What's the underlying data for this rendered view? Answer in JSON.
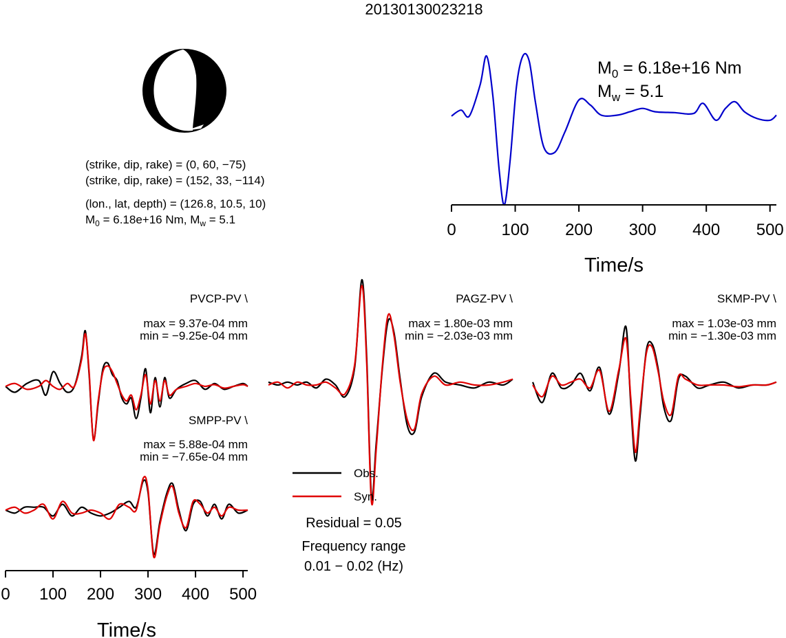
{
  "figure": {
    "title": "20130130023218",
    "focal": {
      "line1": "(strike, dip, rake) = (0, 60, −75)",
      "line2": "(strike, dip, rake) = (152, 33, −114)",
      "line3": "(lon., lat, depth) = (126.8, 10.5, 10)",
      "line4_prefix": "M",
      "line4_sub1": "0",
      "line4_mid": " = 6.18e+16 Nm, M",
      "line4_sub2": "w",
      "line4_suffix": " = 5.1"
    },
    "stf": {
      "m0_prefix": "M",
      "m0_sub": "0",
      "m0_value": " = 6.18e+16 Nm",
      "mw_prefix": "M",
      "mw_sub": "w",
      "mw_value": " = 5.1",
      "xlabel": "Time/s"
    },
    "legend": {
      "obs": "Obs.",
      "syn": "Syn.",
      "residual": "Residual = 0.05",
      "freq_label": "Frequency range",
      "freq_value": "0.01 − 0.02 (Hz)"
    },
    "wave_xlabel": "Time/s"
  },
  "colors": {
    "obs": "#000000",
    "syn": "#e00000",
    "stf": "#0000cc",
    "beachball": "#000000"
  },
  "chart_data": [
    {
      "type": "line",
      "role": "source-time-function",
      "xlabel": "Time/s",
      "xlim": [
        0,
        510
      ],
      "xticks": [
        0,
        100,
        200,
        300,
        400,
        500
      ],
      "annotations": [
        "M0 = 6.18e+16 Nm",
        "Mw = 5.1"
      ],
      "series": [
        {
          "x": [
            0,
            15,
            28,
            45,
            55,
            65,
            75,
            83,
            92,
            102,
            112,
            122,
            132,
            145,
            162,
            178,
            200,
            218,
            235,
            260,
            280,
            300,
            320,
            350,
            380,
            395,
            415,
            430,
            445,
            460,
            480,
            500,
            510
          ],
          "values": [
            0.05,
            0.4,
            0.05,
            1.9,
            3.6,
            1.2,
            -3.2,
            -5.2,
            -2.6,
            1.8,
            3.6,
            3.3,
            0.8,
            -1.8,
            -2.1,
            -0.9,
            1.0,
            0.7,
            0.1,
            0.1,
            0.3,
            0.5,
            0.3,
            0.25,
            0.2,
            0.8,
            -0.2,
            0.5,
            0.9,
            0.3,
            -0.1,
            -0.2,
            0.1
          ]
        }
      ]
    },
    {
      "type": "line",
      "station": "PVCP-PV \\",
      "max_label": "max = 9.37e-04 mm",
      "min_label": "min = −9.25e-04 mm",
      "xlim": [
        0,
        510
      ],
      "series": [
        {
          "name": "Obs.",
          "x": [
            0,
            20,
            45,
            70,
            85,
            100,
            115,
            130,
            145,
            160,
            168,
            176,
            185,
            195,
            205,
            215,
            225,
            235,
            245,
            255,
            265,
            275,
            285,
            295,
            305,
            315,
            325,
            335,
            345,
            360,
            380,
            400,
            420,
            440,
            460,
            480,
            500,
            510
          ],
          "values": [
            0,
            -0.1,
            0.05,
            0.1,
            -0.15,
            0.25,
            0.05,
            -0.1,
            0.0,
            0.5,
            0.95,
            0.2,
            -0.9,
            -0.3,
            0.3,
            0.4,
            0.2,
            0.1,
            -0.2,
            -0.3,
            -0.2,
            -0.55,
            -0.2,
            0.3,
            -0.45,
            0.15,
            -0.35,
            0.15,
            -0.2,
            -0.05,
            0.05,
            0.1,
            -0.05,
            0.05,
            -0.05,
            0.0,
            0.05,
            0.0
          ]
        },
        {
          "name": "Syn.",
          "x": [
            0,
            20,
            45,
            70,
            85,
            100,
            115,
            130,
            145,
            160,
            168,
            176,
            185,
            195,
            205,
            215,
            225,
            235,
            245,
            255,
            265,
            275,
            285,
            295,
            305,
            315,
            325,
            335,
            345,
            360,
            380,
            400,
            420,
            440,
            460,
            480,
            500,
            510
          ],
          "values": [
            0,
            0.05,
            -0.05,
            0.0,
            0.1,
            0.0,
            -0.05,
            0.05,
            0.0,
            0.45,
            0.9,
            0.25,
            -0.92,
            -0.25,
            0.25,
            0.35,
            0.25,
            0.05,
            -0.15,
            -0.25,
            -0.15,
            -0.4,
            -0.15,
            0.2,
            -0.3,
            0.1,
            -0.25,
            0.1,
            -0.15,
            -0.05,
            0.0,
            0.05,
            0.0,
            0.03,
            -0.03,
            0.0,
            0.03,
            0.0
          ]
        }
      ]
    },
    {
      "type": "line",
      "station": "PAGZ-PV \\",
      "max_label": "max = 1.80e-03 mm",
      "min_label": "min = −2.03e-03 mm",
      "xlim": [
        0,
        510
      ],
      "series": [
        {
          "name": "Obs.",
          "x": [
            0,
            20,
            40,
            60,
            80,
            100,
            120,
            140,
            160,
            180,
            195,
            205,
            215,
            225,
            238,
            250,
            262,
            275,
            290,
            305,
            320,
            345,
            370,
            400,
            430,
            460,
            490,
            510
          ],
          "values": [
            0.05,
            0.0,
            0.05,
            0.0,
            0.05,
            -0.05,
            0.1,
            0.0,
            -0.2,
            0.3,
            1.8,
            0.5,
            -1.9,
            -1.0,
            0.3,
            1.1,
            0.9,
            0.1,
            -0.7,
            -0.8,
            -0.2,
            0.2,
            0.05,
            0.0,
            -0.05,
            0.05,
            0.0,
            0.1
          ]
        },
        {
          "name": "Syn.",
          "x": [
            0,
            20,
            40,
            60,
            80,
            100,
            120,
            140,
            160,
            180,
            195,
            205,
            215,
            225,
            238,
            250,
            262,
            275,
            290,
            305,
            320,
            345,
            370,
            400,
            430,
            460,
            490,
            510
          ],
          "values": [
            0.0,
            0.05,
            -0.05,
            0.05,
            0.0,
            0.0,
            0.05,
            -0.05,
            -0.15,
            0.35,
            1.7,
            0.4,
            -2.0,
            -1.1,
            0.35,
            1.2,
            0.85,
            0.05,
            -0.6,
            -0.75,
            -0.15,
            0.15,
            0.0,
            0.05,
            0.0,
            0.0,
            0.05,
            0.1
          ]
        }
      ]
    },
    {
      "type": "line",
      "station": "SKMP-PV \\",
      "max_label": "max = 1.03e-03 mm",
      "min_label": "min = −1.30e-03 mm",
      "xlim": [
        0,
        510
      ],
      "series": [
        {
          "name": "Obs.",
          "x": [
            0,
            20,
            40,
            60,
            80,
            100,
            120,
            140,
            160,
            180,
            195,
            205,
            215,
            225,
            238,
            250,
            262,
            275,
            290,
            305,
            320,
            345,
            370,
            400,
            430,
            460,
            490,
            510
          ],
          "values": [
            0.05,
            -0.3,
            0.2,
            -0.05,
            0.0,
            0.2,
            -0.1,
            0.3,
            -0.5,
            0.2,
            1.0,
            -0.3,
            -1.3,
            -0.5,
            0.6,
            0.7,
            0.3,
            -0.4,
            -0.6,
            0.1,
            0.15,
            -0.05,
            0.0,
            0.05,
            -0.05,
            0.0,
            0.0,
            0.05
          ]
        },
        {
          "name": "Syn.",
          "x": [
            0,
            20,
            40,
            60,
            80,
            100,
            120,
            140,
            160,
            180,
            195,
            205,
            215,
            225,
            238,
            250,
            262,
            275,
            290,
            305,
            320,
            345,
            370,
            400,
            430,
            460,
            490,
            510
          ],
          "values": [
            0.0,
            -0.2,
            0.15,
            0.0,
            0.05,
            0.1,
            -0.05,
            0.25,
            -0.45,
            0.25,
            0.8,
            -0.2,
            -1.15,
            -0.4,
            0.55,
            0.65,
            0.25,
            -0.3,
            -0.5,
            0.15,
            0.1,
            0.0,
            0.0,
            0.0,
            -0.03,
            0.0,
            0.0,
            0.05
          ]
        }
      ]
    },
    {
      "type": "line",
      "station": "SMPP-PV \\",
      "max_label": "max = 5.88e-04 mm",
      "min_label": "min = −7.65e-04 mm",
      "xlabel": "Time/s",
      "xlim": [
        0,
        510
      ],
      "xticks": [
        0,
        100,
        200,
        300,
        400,
        500
      ],
      "series": [
        {
          "name": "Obs.",
          "x": [
            0,
            20,
            40,
            60,
            80,
            100,
            120,
            140,
            160,
            180,
            200,
            220,
            240,
            260,
            275,
            290,
            300,
            312,
            325,
            340,
            352,
            365,
            380,
            395,
            410,
            425,
            440,
            455,
            470,
            490,
            510
          ],
          "values": [
            0.0,
            -0.05,
            0.05,
            0.05,
            0.05,
            -0.1,
            0.1,
            -0.1,
            0.05,
            -0.05,
            -0.1,
            -0.05,
            0.05,
            0.15,
            0.05,
            0.5,
            0.3,
            -0.75,
            -0.2,
            0.3,
            0.45,
            0.0,
            -0.35,
            0.1,
            0.15,
            -0.1,
            0.1,
            -0.15,
            0.1,
            -0.05,
            0.0
          ]
        },
        {
          "name": "Syn.",
          "x": [
            0,
            20,
            40,
            60,
            80,
            100,
            120,
            140,
            160,
            180,
            200,
            220,
            240,
            260,
            275,
            290,
            300,
            312,
            325,
            340,
            352,
            365,
            380,
            395,
            410,
            425,
            440,
            455,
            470,
            490,
            510
          ],
          "values": [
            0.0,
            0.05,
            -0.05,
            0.0,
            0.1,
            -0.15,
            0.15,
            -0.05,
            -0.05,
            0.0,
            -0.05,
            -0.15,
            0.1,
            0.05,
            0.0,
            0.55,
            0.35,
            -0.8,
            -0.25,
            0.25,
            0.4,
            -0.05,
            -0.3,
            0.15,
            0.1,
            -0.05,
            0.05,
            -0.1,
            0.05,
            0.0,
            0.0
          ]
        }
      ]
    }
  ]
}
